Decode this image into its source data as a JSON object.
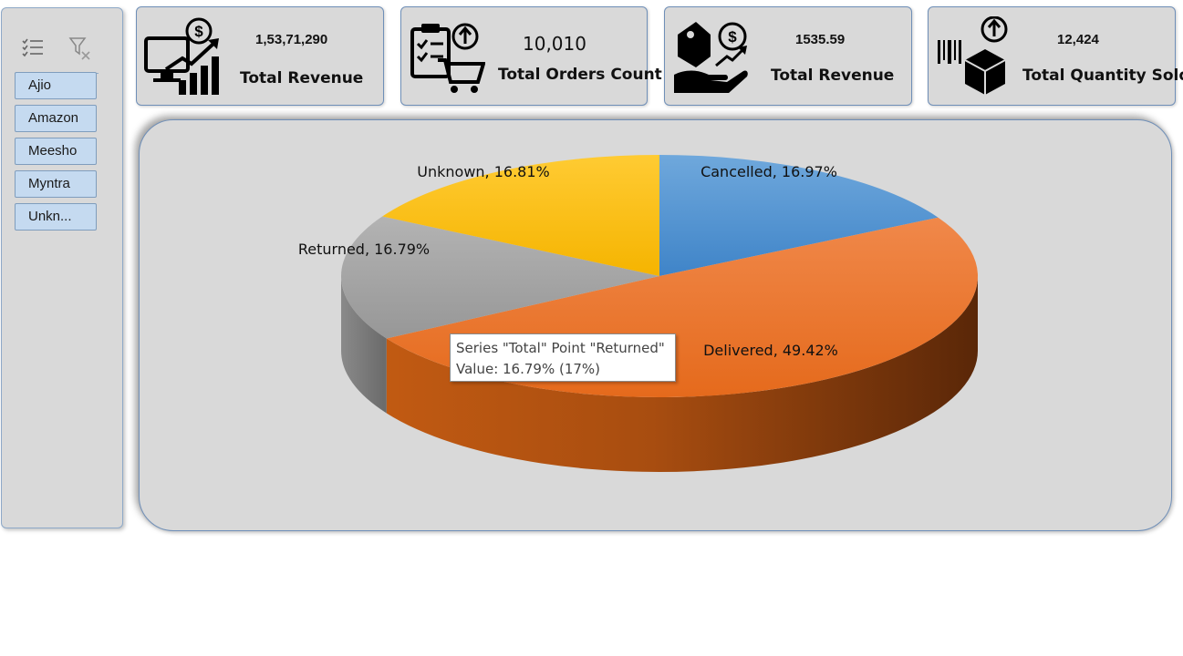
{
  "slicer": {
    "tools": {
      "multi_select": "multi-select-icon",
      "clear_filter": "clear-filter-icon"
    },
    "items": [
      {
        "label": "Ajio"
      },
      {
        "label": "Amazon"
      },
      {
        "label": "Meesho"
      },
      {
        "label": "Myntra"
      },
      {
        "label": "Unkn..."
      }
    ]
  },
  "kpis": [
    {
      "value": "1,53,71,290",
      "label": "Total Revenue",
      "icon": "revenue-monitor-icon"
    },
    {
      "value": "10,010",
      "label": "Total Orders Count",
      "icon": "order-cart-icon"
    },
    {
      "value": "1535.59",
      "label": "Total Revenue",
      "icon": "price-tag-hand-icon"
    },
    {
      "value": "12,424",
      "label": "Total Quantity Sold",
      "icon": "package-barcode-icon"
    }
  ],
  "colors": {
    "cancelled": "#5b9bd5",
    "delivered": "#ed7d31",
    "returned": "#a5a5a5",
    "unknown": "#ffc000"
  },
  "chart_data": {
    "type": "pie",
    "title": "",
    "series": [
      {
        "name": "Total",
        "slices": [
          {
            "label": "Cancelled",
            "value": 16.97,
            "text": "Cancelled, 16.97%"
          },
          {
            "label": "Delivered",
            "value": 49.42,
            "text": "Delivered, 49.42%"
          },
          {
            "label": "Returned",
            "value": 16.79,
            "text": "Returned, 16.79%"
          },
          {
            "label": "Unknown",
            "value": 16.81,
            "text": "Unknown, 16.81%"
          }
        ]
      }
    ],
    "legend": "none",
    "tooltip": {
      "line1": "Series \"Total\" Point \"Returned\"",
      "line2": "Value: 16.79% (17%)"
    }
  }
}
